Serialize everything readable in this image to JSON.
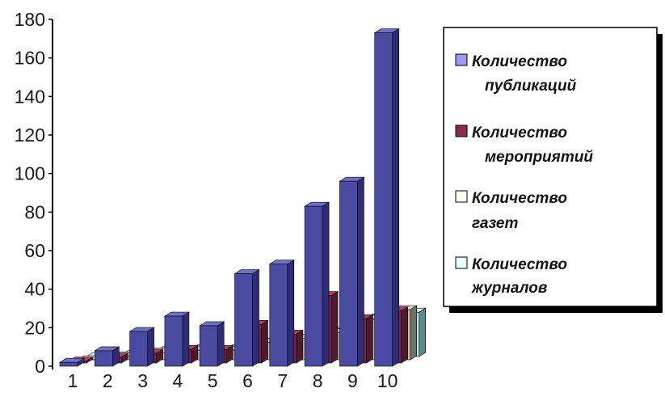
{
  "chart_data": {
    "type": "bar",
    "categories": [
      "1",
      "2",
      "3",
      "4",
      "5",
      "6",
      "7",
      "8",
      "9",
      "10"
    ],
    "series": [
      {
        "name": "Количество публикаций",
        "values": [
          2,
          8,
          18,
          26,
          21,
          48,
          53,
          83,
          96,
          173
        ]
      },
      {
        "name": "Количество мероприятий",
        "values": [
          1,
          3,
          5,
          7,
          7,
          20,
          15,
          35,
          23,
          27
        ]
      },
      {
        "name": "Количество газет",
        "values": [
          0,
          2,
          4,
          5,
          5,
          9,
          11,
          14,
          21,
          26
        ]
      },
      {
        "name": "Количество журналов",
        "values": [
          0,
          1,
          3,
          4,
          4,
          5,
          9,
          13,
          20,
          23
        ]
      }
    ],
    "yticks": [
      "0",
      "20",
      "40",
      "60",
      "80",
      "100",
      "120",
      "140",
      "160",
      "180"
    ],
    "ylim": [
      0,
      180
    ],
    "legend": {
      "position": "right",
      "entries": [
        {
          "line1": "Количество",
          "line2": "публикаций"
        },
        {
          "line1": "Количество",
          "line2": "мероприятий"
        },
        {
          "line1": "Количество",
          "line2": "газет"
        },
        {
          "line1": "Количество",
          "line2": "журналов"
        }
      ]
    },
    "colors": {
      "series": [
        "#4a4aa0",
        "#7a2848",
        "#c8c4a0",
        "#b8e8e8"
      ],
      "series_top": [
        "#7070c8",
        "#a84060",
        "#e8e4c8",
        "#e0fafa"
      ],
      "series_side": [
        "#2c2c78",
        "#501830",
        "#70706a",
        "#5a8a8a"
      ],
      "legend_swatches": [
        "#9999ee",
        "#8a2a50",
        "#fffff0",
        "#e8ffff"
      ]
    },
    "grid": false,
    "style": "3d-clustered"
  }
}
